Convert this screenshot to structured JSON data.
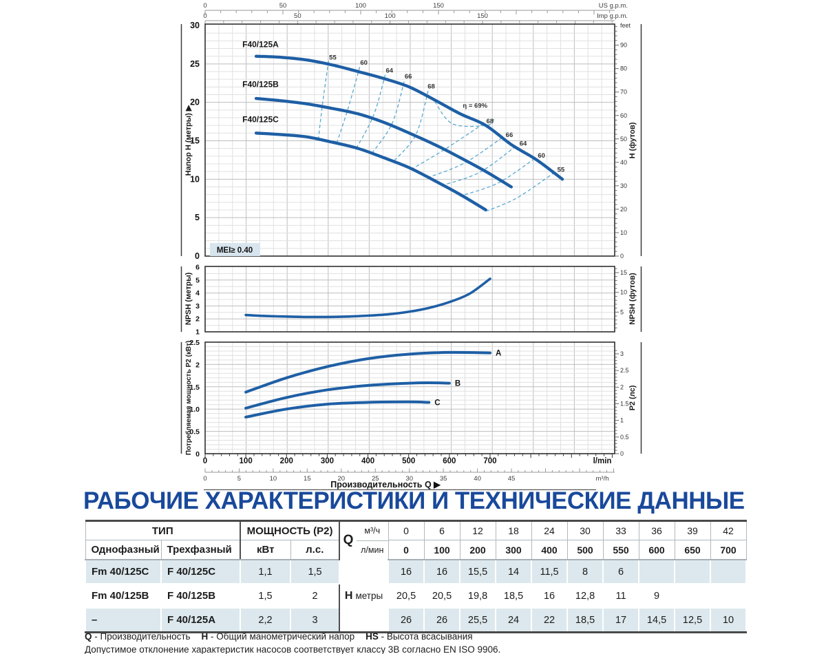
{
  "title": "РАБОЧИЕ ХАРАКТЕРИСТИКИ И ТЕХНИЧЕСКИЕ ДАННЫЕ",
  "colors": {
    "curve": "#1e5fa5",
    "contour": "#58a8cf",
    "title_blue": "#19499b",
    "row_alt": "#dce8ed",
    "mei_bg": "#d8e5ee",
    "grid_minor": "#e0e0e0",
    "grid_major": "#bdbdbd",
    "frame": "#2f2f2f",
    "axis_gray": "#979797",
    "bracket": "#3a3a3a"
  },
  "top_axes": {
    "us": {
      "title": "US g.p.m.",
      "ticks": [
        0,
        50,
        100,
        150
      ]
    },
    "imp": {
      "title": "Imp g.p.m.",
      "ticks": [
        0,
        50,
        100,
        150
      ]
    }
  },
  "chart_data": [
    {
      "type": "line",
      "name": "head-flow",
      "ylabel_left": "Напор H (метры) ▶",
      "ylabel_right": "H (футов)",
      "right_unit_top": "feet",
      "xlabel": "Производительность Q (l/min)",
      "ylim": [
        0,
        30
      ],
      "yticks": [
        0,
        5,
        10,
        15,
        20,
        25,
        30
      ],
      "yticks_right_feet": [
        0,
        10,
        20,
        30,
        40,
        50,
        60,
        70,
        80,
        90
      ],
      "mei_label": "MEI≥ 0.40",
      "series": [
        {
          "name": "F40/125A",
          "label_at": [
            73,
            27.2
          ],
          "points": [
            [
              100,
              26
            ],
            [
              150,
              25.85
            ],
            [
              200,
              25.5
            ],
            [
              250,
              24.85
            ],
            [
              300,
              24
            ],
            [
              350,
              23.1
            ],
            [
              400,
              22
            ],
            [
              450,
              20.3
            ],
            [
              500,
              18.5
            ],
            [
              550,
              17
            ],
            [
              600,
              14.5
            ],
            [
              650,
              12.5
            ],
            [
              700,
              10
            ]
          ]
        },
        {
          "name": "F40/125B",
          "label_at": [
            73,
            22.0
          ],
          "points": [
            [
              100,
              20.5
            ],
            [
              150,
              20.2
            ],
            [
              200,
              19.8
            ],
            [
              250,
              19.2
            ],
            [
              300,
              18.5
            ],
            [
              350,
              17.4
            ],
            [
              400,
              16
            ],
            [
              450,
              14.5
            ],
            [
              500,
              12.8
            ],
            [
              550,
              11
            ],
            [
              600,
              9
            ]
          ]
        },
        {
          "name": "F40/125C",
          "label_at": [
            73,
            17.4
          ],
          "points": [
            [
              100,
              16
            ],
            [
              150,
              15.8
            ],
            [
              200,
              15.5
            ],
            [
              250,
              14.8
            ],
            [
              300,
              14
            ],
            [
              350,
              12.8
            ],
            [
              400,
              11.5
            ],
            [
              450,
              9.8
            ],
            [
              500,
              8
            ],
            [
              550,
              6
            ]
          ]
        }
      ],
      "efficiency_contours": {
        "labels": [
          {
            "text": "55",
            "at": [
              243,
              25.9
            ]
          },
          {
            "text": "60",
            "at": [
              304,
              25.2
            ]
          },
          {
            "text": "64",
            "at": [
              354,
              24.2
            ]
          },
          {
            "text": "66",
            "at": [
              391,
              23.4
            ]
          },
          {
            "text": "68",
            "at": [
              436,
              22.1
            ]
          },
          {
            "text": "η = 69%",
            "at": [
              505,
              19.6
            ]
          },
          {
            "text": "68",
            "at": [
              551,
              17.6
            ]
          },
          {
            "text": "66",
            "at": [
              589,
              15.8
            ]
          },
          {
            "text": "64",
            "at": [
              616,
              14.7
            ]
          },
          {
            "text": "60",
            "at": [
              652,
              13.1
            ]
          },
          {
            "text": "55",
            "at": [
              690,
              11.3
            ]
          }
        ],
        "lines": [
          {
            "value": 55,
            "points": [
              [
                242,
                25.4
              ],
              [
                231,
                20.3
              ],
              [
                222,
                15.3
              ]
            ]
          },
          {
            "value": 60,
            "points": [
              [
                303,
                24.6
              ],
              [
                281,
                19.4
              ],
              [
                258,
                14.7
              ]
            ]
          },
          {
            "value": 64,
            "points": [
              [
                353,
                23.6
              ],
              [
                330,
                18.3
              ],
              [
                296,
                14.0
              ]
            ]
          },
          {
            "value": 66,
            "points": [
              [
                390,
                22.7
              ],
              [
                366,
                17.2
              ],
              [
                326,
                13.3
              ]
            ]
          },
          {
            "value": 68,
            "points": [
              [
                437,
                21.5
              ],
              [
                413,
                15.8
              ],
              [
                369,
                12.3
              ]
            ]
          },
          {
            "value": 69,
            "points": [
              [
                450,
                20.1
              ],
              [
                485,
                17.2
              ],
              [
                551,
                17.0
              ],
              [
                566,
                17.8
              ]
            ]
          },
          {
            "value": 68,
            "points": [
              [
                545,
                17.2
              ],
              [
                470,
                13.9
              ],
              [
                407,
                11.4
              ]
            ]
          },
          {
            "value": 66,
            "points": [
              [
                582,
                15.4
              ],
              [
                508,
                12.1
              ],
              [
                436,
                10.2
              ]
            ]
          },
          {
            "value": 64,
            "points": [
              [
                609,
                14.3
              ],
              [
                538,
                10.9
              ],
              [
                465,
                9.2
              ]
            ]
          },
          {
            "value": 60,
            "points": [
              [
                646,
                12.7
              ],
              [
                574,
                9.5
              ],
              [
                499,
                7.8
              ]
            ]
          },
          {
            "value": 55,
            "points": [
              [
                685,
                10.9
              ],
              [
                612,
                7.6
              ],
              [
                553,
                5.9
              ]
            ]
          }
        ]
      }
    },
    {
      "type": "line",
      "name": "npsh",
      "ylabel_left": "NPSH (метры)",
      "ylabel_right": "NPSH (футов)",
      "ylim": [
        1,
        6
      ],
      "yticks": [
        1,
        2,
        3,
        4,
        5,
        6
      ],
      "yticks_right_feet": [
        5,
        10,
        15
      ],
      "series": [
        {
          "name": "NPSH",
          "points": [
            [
              100,
              2.3
            ],
            [
              150,
              2.22
            ],
            [
              200,
              2.18
            ],
            [
              250,
              2.15
            ],
            [
              300,
              2.15
            ],
            [
              350,
              2.18
            ],
            [
              400,
              2.25
            ],
            [
              450,
              2.35
            ],
            [
              500,
              2.55
            ],
            [
              550,
              2.85
            ],
            [
              600,
              3.3
            ],
            [
              650,
              3.95
            ],
            [
              700,
              5.1
            ]
          ]
        }
      ]
    },
    {
      "type": "line",
      "name": "power",
      "ylabel_left": "Потребляемая мощность P2 (кВт)",
      "ylabel_right": "P2 (лс)",
      "ylim": [
        0,
        2.5
      ],
      "yticks": [
        0,
        0.5,
        1,
        1.5,
        2,
        2.5
      ],
      "yticks_labels": [
        "0",
        "0.5",
        "1.0",
        "1.5",
        "2",
        "2.5"
      ],
      "yticks_right_hp": [
        0,
        0.5,
        1,
        1.5,
        2,
        2.5,
        3
      ],
      "series": [
        {
          "name": "A",
          "points": [
            [
              100,
              1.38
            ],
            [
              200,
              1.7
            ],
            [
              300,
              1.95
            ],
            [
              400,
              2.13
            ],
            [
              500,
              2.23
            ],
            [
              600,
              2.27
            ],
            [
              700,
              2.26
            ]
          ]
        },
        {
          "name": "B",
          "points": [
            [
              100,
              1.02
            ],
            [
              200,
              1.26
            ],
            [
              300,
              1.43
            ],
            [
              400,
              1.53
            ],
            [
              500,
              1.58
            ],
            [
              550,
              1.59
            ],
            [
              600,
              1.58
            ]
          ]
        },
        {
          "name": "C",
          "points": [
            [
              100,
              0.82
            ],
            [
              200,
              1.0
            ],
            [
              300,
              1.11
            ],
            [
              400,
              1.15
            ],
            [
              500,
              1.16
            ],
            [
              550,
              1.15
            ]
          ]
        }
      ]
    }
  ],
  "bottom_axis": {
    "lmin": {
      "ticks": [
        0,
        100,
        200,
        300,
        400,
        500,
        600,
        700
      ],
      "unit": "l/min"
    },
    "m3h": {
      "ticks": [
        0,
        5,
        10,
        15,
        20,
        25,
        30,
        35,
        40,
        45
      ],
      "unit": "m³/h"
    },
    "title": "Производительность Q ▶"
  },
  "table": {
    "type_header": "ТИП",
    "power_header": "МОЩНОСТЬ (P2)",
    "col_single": "Однофазный",
    "col_three": "Трехфазный",
    "col_kw": "кВт",
    "col_hp": "л.с.",
    "q_label": "Q",
    "q_unit_top": "м³/ч",
    "q_unit_bottom": "л/мин",
    "h_label": "H",
    "h_unit": "метры",
    "m3h_values": [
      "0",
      "6",
      "12",
      "18",
      "24",
      "30",
      "33",
      "36",
      "39",
      "42"
    ],
    "lmin_values": [
      "0",
      "100",
      "200",
      "300",
      "400",
      "500",
      "550",
      "600",
      "650",
      "700"
    ],
    "rows": [
      {
        "single": "Fm 40/125C",
        "three": "F 40/125C",
        "kw": "1,1",
        "hp": "1,5",
        "h": [
          "16",
          "16",
          "15,5",
          "14",
          "11,5",
          "8",
          "6",
          "",
          "",
          ""
        ]
      },
      {
        "single": "Fm 40/125B",
        "three": "F 40/125B",
        "kw": "1,5",
        "hp": "2",
        "h": [
          "20,5",
          "20,5",
          "19,8",
          "18,5",
          "16",
          "12,8",
          "11",
          "9",
          "",
          ""
        ]
      },
      {
        "single": "–",
        "three": "F 40/125A",
        "kw": "2,2",
        "hp": "3",
        "h": [
          "26",
          "26",
          "25,5",
          "24",
          "22",
          "18,5",
          "17",
          "14,5",
          "12,5",
          "10"
        ]
      }
    ]
  },
  "footnotes": {
    "legend": [
      {
        "term": "Q",
        "def": " - Производительность"
      },
      {
        "term": "H",
        "def": " - Общий манометрический напор"
      },
      {
        "term": "HS",
        "def": " - Высота всасывания"
      }
    ],
    "tolerance": "Допустимое отклонение характеристик насосов соответствует классу 3B согласно EN ISO 9906."
  }
}
